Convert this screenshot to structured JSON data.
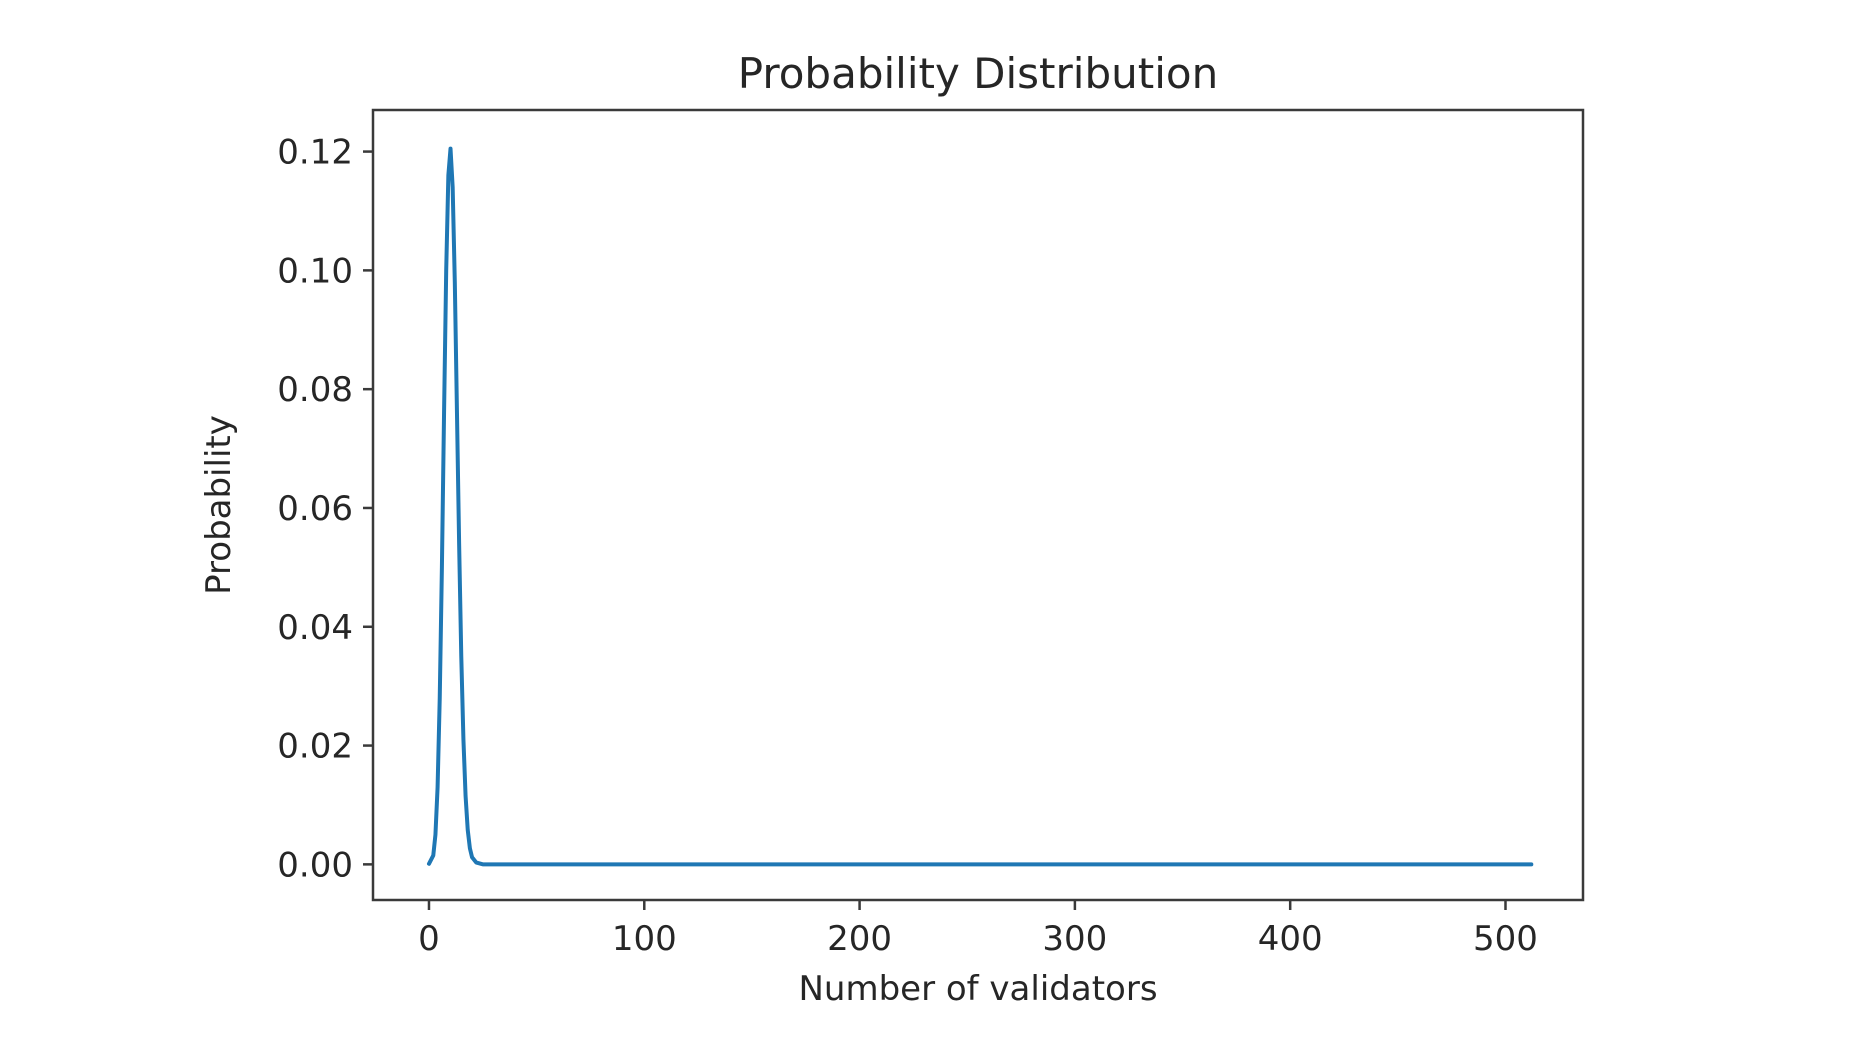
{
  "chart_data": {
    "type": "line",
    "title": "Probability Distribution",
    "xlabel": "Number of validators",
    "ylabel": "Probability",
    "xlim": [
      -26,
      536
    ],
    "ylim": [
      -0.006,
      0.127
    ],
    "x_ticks": [
      {
        "value": 0,
        "label": "0"
      },
      {
        "value": 100,
        "label": "100"
      },
      {
        "value": 200,
        "label": "200"
      },
      {
        "value": 300,
        "label": "300"
      },
      {
        "value": 400,
        "label": "400"
      },
      {
        "value": 500,
        "label": "500"
      }
    ],
    "y_ticks": [
      {
        "value": 0.0,
        "label": "0.00"
      },
      {
        "value": 0.02,
        "label": "0.02"
      },
      {
        "value": 0.04,
        "label": "0.04"
      },
      {
        "value": 0.06,
        "label": "0.06"
      },
      {
        "value": 0.08,
        "label": "0.08"
      },
      {
        "value": 0.1,
        "label": "0.10"
      },
      {
        "value": 0.12,
        "label": "0.12"
      }
    ],
    "grid": false,
    "series": [
      {
        "color": "#1f77b4",
        "x": [
          0,
          2,
          3,
          4,
          5,
          6,
          7,
          8,
          9,
          10,
          11,
          12,
          13,
          14,
          15,
          16,
          17,
          18,
          19,
          20,
          22,
          25,
          30,
          40,
          60,
          100,
          200,
          300,
          400,
          512
        ],
        "y": [
          0.0001,
          0.0015,
          0.005,
          0.013,
          0.028,
          0.05,
          0.076,
          0.1,
          0.116,
          0.1205,
          0.114,
          0.098,
          0.076,
          0.054,
          0.035,
          0.021,
          0.0115,
          0.0058,
          0.0027,
          0.0012,
          0.0003,
          0.0,
          0.0,
          0.0,
          0.0,
          0.0,
          0.0,
          0.0,
          0.0,
          0.0
        ]
      }
    ]
  }
}
